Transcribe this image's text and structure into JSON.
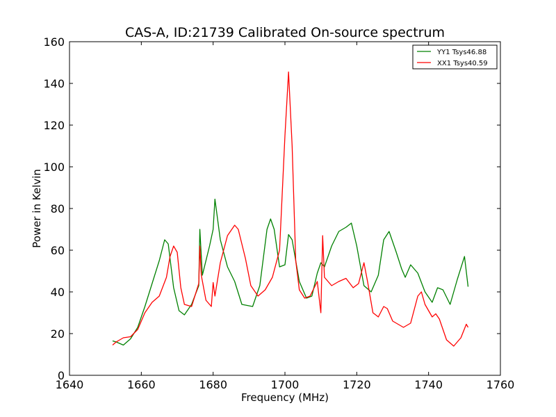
{
  "chart_data": {
    "type": "line",
    "title": "CAS-A, ID:21739 Calibrated On-source spectrum",
    "xlabel": "Frequency (MHz)",
    "ylabel": "Power in Kelvin",
    "xlim": [
      1640,
      1760
    ],
    "ylim": [
      0,
      160
    ],
    "xticks": [
      1640,
      1660,
      1680,
      1700,
      1720,
      1740,
      1760
    ],
    "yticks": [
      0,
      20,
      40,
      60,
      80,
      100,
      120,
      140,
      160
    ],
    "grid": false,
    "legend_position": "top-right",
    "series": [
      {
        "name": "YY1 Tsys46.88",
        "color": "#008000",
        "x": [
          1652,
          1653,
          1655,
          1657,
          1659,
          1661,
          1663,
          1665,
          1666.5,
          1667.5,
          1669,
          1670.5,
          1672,
          1674,
          1676,
          1676.3,
          1677,
          1679,
          1680,
          1680.5,
          1682,
          1684,
          1686,
          1688,
          1691,
          1693,
          1695,
          1696,
          1697,
          1698.5,
          1700,
          1701,
          1702,
          1704,
          1706,
          1707.5,
          1709,
          1710,
          1711,
          1713,
          1715,
          1717,
          1718.5,
          1720,
          1722,
          1724,
          1726,
          1727.5,
          1729,
          1731,
          1732.5,
          1733.5,
          1735,
          1737,
          1739,
          1741,
          1742.5,
          1744,
          1746,
          1748,
          1750,
          1751
        ],
        "values": [
          16.5,
          16,
          14.5,
          17.5,
          23,
          33,
          44,
          55,
          65,
          63,
          42,
          31,
          29,
          34,
          43,
          70,
          48,
          62,
          70,
          84.5,
          65,
          52,
          45,
          34,
          33,
          43,
          70,
          75,
          70,
          52,
          53,
          67.5,
          65,
          45,
          37,
          38,
          49,
          54,
          52,
          62,
          69,
          71,
          73,
          62,
          43,
          40,
          48,
          65,
          69,
          59,
          51,
          47,
          53,
          49,
          40,
          35,
          42,
          41,
          34,
          46,
          57,
          42.5
        ]
      },
      {
        "name": "XX1 Tsys40.59",
        "color": "#ff0000",
        "x": [
          1652,
          1653,
          1655,
          1657,
          1659,
          1661,
          1663,
          1665,
          1667,
          1668,
          1669,
          1670,
          1671,
          1672,
          1674,
          1676,
          1676.3,
          1676.7,
          1678,
          1679.5,
          1680,
          1680.5,
          1682,
          1684,
          1686,
          1687,
          1689,
          1690.5,
          1692.5,
          1694.5,
          1696.5,
          1698.5,
          1700,
          1701,
          1702,
          1703,
          1704,
          1705.5,
          1707,
          1709,
          1710,
          1710.5,
          1711,
          1713,
          1715,
          1717,
          1719,
          1720.5,
          1722,
          1723,
          1724.5,
          1726,
          1727.5,
          1728.5,
          1730,
          1733,
          1735,
          1737,
          1738,
          1739,
          1741,
          1742,
          1743,
          1745,
          1747,
          1749,
          1750.5,
          1751
        ],
        "values": [
          14.5,
          16,
          18,
          18.5,
          22,
          30,
          35,
          38,
          47,
          57,
          62,
          59,
          42,
          34,
          33,
          44,
          62,
          48,
          36,
          33,
          44.5,
          38,
          54,
          67,
          72,
          70,
          56,
          43,
          38,
          41,
          47,
          60,
          115,
          145.5,
          110,
          55,
          41,
          37,
          38,
          45,
          30,
          67,
          47,
          43,
          45,
          46.5,
          42,
          44,
          54,
          45,
          30,
          28,
          33,
          32,
          26,
          23,
          25,
          38,
          40,
          34,
          28,
          29.5,
          27,
          17,
          14,
          18,
          24.5,
          23
        ]
      }
    ]
  }
}
